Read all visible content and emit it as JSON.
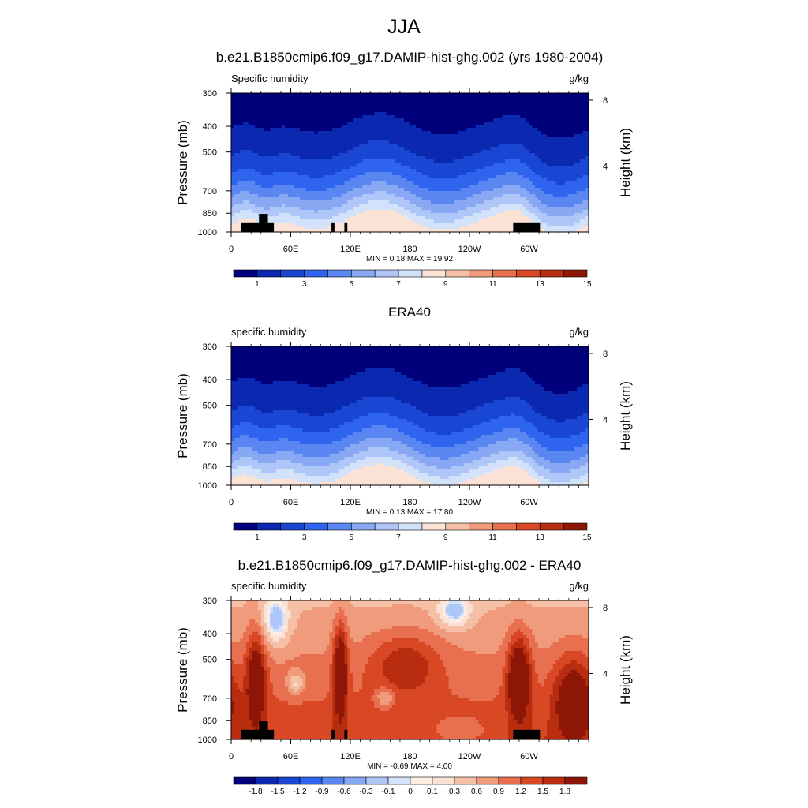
{
  "figure": {
    "title": "JJA"
  },
  "chart_data": [
    {
      "type": "heatmap",
      "title": "b.e21.B1850cmip6.f09_g17.DAMIP-hist-ghg.002 (yrs 1980-2004)",
      "left_label": "Specific humidity",
      "right_label": "g/kg",
      "ylabel": "Pressure (mb)",
      "ylabel_right": "Height (km)",
      "xticks": [
        "0",
        "60E",
        "120E",
        "180",
        "120W",
        "60W"
      ],
      "xtick_lons": [
        0,
        60,
        120,
        180,
        240,
        300
      ],
      "xlim": [
        0,
        360
      ],
      "yticks": [
        "300",
        "400",
        "500",
        "700",
        "850",
        "1000"
      ],
      "ytick_values": [
        300,
        400,
        500,
        700,
        850,
        1000
      ],
      "ylim": [
        1000,
        300
      ],
      "height_ticks": [
        "8",
        "4"
      ],
      "height_tick_km": [
        8,
        4
      ],
      "stats": "MIN =   0.18  MAX =  19.92",
      "min": 0.18,
      "max": 19.92,
      "colorbar": {
        "labels": [
          "1",
          "3",
          "5",
          "7",
          "9",
          "11",
          "13",
          "15"
        ],
        "levels": [
          1,
          3,
          5,
          7,
          9,
          11,
          13,
          15
        ],
        "colors": [
          "#00007a",
          "#0a28b0",
          "#1a46d4",
          "#2e64ee",
          "#5a86f2",
          "#88a8f4",
          "#aec6f8",
          "#d2e2fb",
          "#fbe2d4",
          "#f6c0a6",
          "#f09c7c",
          "#e87050",
          "#d84824",
          "#b82c10",
          "#8e1606"
        ]
      }
    },
    {
      "type": "heatmap",
      "title": "ERA40",
      "left_label": "specific humidity",
      "right_label": "g/kg",
      "ylabel": "Pressure (mb)",
      "ylabel_right": "Height (km)",
      "xticks": [
        "0",
        "60E",
        "120E",
        "180",
        "120W",
        "60W"
      ],
      "xtick_lons": [
        0,
        60,
        120,
        180,
        240,
        300
      ],
      "xlim": [
        0,
        360
      ],
      "yticks": [
        "300",
        "400",
        "500",
        "700",
        "850",
        "1000"
      ],
      "ytick_values": [
        300,
        400,
        500,
        700,
        850,
        1000
      ],
      "ylim": [
        1000,
        300
      ],
      "height_ticks": [
        "8",
        "4"
      ],
      "height_tick_km": [
        8,
        4
      ],
      "stats": "MIN =   0.13  MAX =  17.80",
      "min": 0.13,
      "max": 17.8,
      "colorbar": {
        "labels": [
          "1",
          "3",
          "5",
          "7",
          "9",
          "11",
          "13",
          "15"
        ],
        "levels": [
          1,
          3,
          5,
          7,
          9,
          11,
          13,
          15
        ],
        "colors": [
          "#00007a",
          "#0a28b0",
          "#1a46d4",
          "#2e64ee",
          "#5a86f2",
          "#88a8f4",
          "#aec6f8",
          "#d2e2fb",
          "#fbe2d4",
          "#f6c0a6",
          "#f09c7c",
          "#e87050",
          "#d84824",
          "#b82c10",
          "#8e1606"
        ]
      }
    },
    {
      "type": "heatmap",
      "title": "b.e21.B1850cmip6.f09_g17.DAMIP-hist-ghg.002 - ERA40",
      "left_label": "specific humidity",
      "right_label": "g/kg",
      "ylabel": "Pressure (mb)",
      "ylabel_right": "Height (km)",
      "xticks": [
        "0",
        "60E",
        "120E",
        "180",
        "120W",
        "60W"
      ],
      "xtick_lons": [
        0,
        60,
        120,
        180,
        240,
        300
      ],
      "xlim": [
        0,
        360
      ],
      "yticks": [
        "300",
        "400",
        "500",
        "700",
        "850",
        "1000"
      ],
      "ytick_values": [
        300,
        400,
        500,
        700,
        850,
        1000
      ],
      "ylim": [
        1000,
        300
      ],
      "height_ticks": [
        "8",
        "4"
      ],
      "height_tick_km": [
        8,
        4
      ],
      "stats": "MIN =  -0.69  MAX =   4.00",
      "min": -0.69,
      "max": 4.0,
      "colorbar": {
        "labels": [
          "-1.8",
          "-1.5",
          "-1.2",
          "-0.9",
          "-0.6",
          "-0.3",
          "-0.1",
          "0",
          "0.1",
          "0.3",
          "0.6",
          "0.9",
          "1.2",
          "1.5",
          "1.8"
        ],
        "levels": [
          -1.8,
          -1.5,
          -1.2,
          -0.9,
          -0.6,
          -0.3,
          -0.1,
          0,
          0.1,
          0.3,
          0.6,
          0.9,
          1.2,
          1.5,
          1.8
        ],
        "colors": [
          "#00007a",
          "#0a28b0",
          "#1a46d4",
          "#2e64ee",
          "#5a86f2",
          "#88a8f4",
          "#aec6f8",
          "#d2e2fb",
          "#fdeee4",
          "#fbe2d4",
          "#f6c0a6",
          "#f09c7c",
          "#e87050",
          "#d84824",
          "#b82c10",
          "#8e1606"
        ]
      }
    }
  ]
}
